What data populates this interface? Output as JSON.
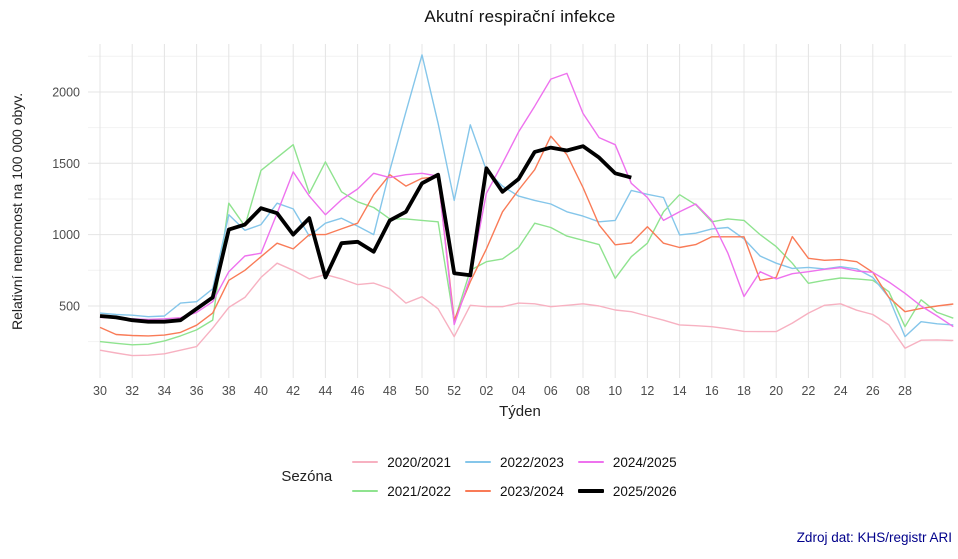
{
  "labels": {
    "title": "Akutní respirační infekce",
    "y_axis": "Relativní nemocnost na 100 000 obyv.",
    "x_axis": "Týden",
    "legend_title": "Sezóna",
    "source": "Zdroj dat: KHS/registr ARI"
  },
  "chart_data": {
    "type": "line",
    "title": "Akutní respirační infekce",
    "xlabel": "Týden",
    "ylabel": "Relativní nemocnost na 100 000 obyv.",
    "legend_title": "Sezóna",
    "legend_position": "bottom",
    "source": "Zdroj dat: KHS/registr ARI",
    "x_categories": [
      "30",
      "31",
      "32",
      "33",
      "34",
      "35",
      "36",
      "37",
      "38",
      "39",
      "40",
      "41",
      "42",
      "43",
      "44",
      "45",
      "46",
      "47",
      "48",
      "49",
      "50",
      "51",
      "52",
      "01",
      "02",
      "03",
      "04",
      "05",
      "06",
      "07",
      "08",
      "09",
      "10",
      "11",
      "12",
      "13",
      "14",
      "15",
      "16",
      "17",
      "18",
      "19",
      "20",
      "21",
      "22",
      "23",
      "24",
      "25",
      "26",
      "27",
      "28",
      "29",
      "30",
      "31"
    ],
    "x_axis": {
      "ticks": [
        {
          "index": 0,
          "label": "30"
        },
        {
          "index": 2,
          "label": "32"
        },
        {
          "index": 4,
          "label": "34"
        },
        {
          "index": 6,
          "label": "36"
        },
        {
          "index": 8,
          "label": "38"
        },
        {
          "index": 10,
          "label": "40"
        },
        {
          "index": 12,
          "label": "42"
        },
        {
          "index": 14,
          "label": "44"
        },
        {
          "index": 16,
          "label": "46"
        },
        {
          "index": 18,
          "label": "48"
        },
        {
          "index": 20,
          "label": "50"
        },
        {
          "index": 22,
          "label": "52"
        },
        {
          "index": 24,
          "label": "02"
        },
        {
          "index": 26,
          "label": "04"
        },
        {
          "index": 28,
          "label": "06"
        },
        {
          "index": 30,
          "label": "08"
        },
        {
          "index": 32,
          "label": "10"
        },
        {
          "index": 34,
          "label": "12"
        },
        {
          "index": 36,
          "label": "14"
        },
        {
          "index": 38,
          "label": "16"
        },
        {
          "index": 40,
          "label": "18"
        },
        {
          "index": 42,
          "label": "20"
        },
        {
          "index": 44,
          "label": "22"
        },
        {
          "index": 46,
          "label": "24"
        },
        {
          "index": 48,
          "label": "26"
        },
        {
          "index": 50,
          "label": "28"
        }
      ]
    },
    "y_axis": {
      "ticks": [
        {
          "value": 500,
          "label": "500"
        },
        {
          "value": 1000,
          "label": "1000"
        },
        {
          "value": 1500,
          "label": "1500"
        },
        {
          "value": 2000,
          "label": "2000"
        }
      ],
      "minor_gridlines": [
        250,
        750,
        1250,
        1750,
        2250
      ],
      "range": [
        0,
        2340
      ]
    },
    "grid": {
      "major_color": "#E4E4E4",
      "minor_color": "#F2F2F2"
    },
    "series": [
      {
        "name": "2020/2021",
        "color": "#F7B1C1",
        "line_width": 1.4,
        "values": [
          190,
          170,
          152,
          155,
          165,
          190,
          215,
          345,
          490,
          560,
          700,
          800,
          750,
          690,
          720,
          690,
          650,
          660,
          620,
          520,
          565,
          480,
          285,
          505,
          495,
          495,
          520,
          515,
          495,
          505,
          515,
          500,
          472,
          460,
          430,
          400,
          367,
          362,
          355,
          340,
          322,
          320,
          320,
          380,
          450,
          505,
          515,
          470,
          440,
          367,
          204,
          260,
          262,
          258
        ]
      },
      {
        "name": "2021/2022",
        "color": "#8FE38F",
        "line_width": 1.4,
        "values": [
          250,
          238,
          228,
          232,
          255,
          290,
          332,
          401,
          1220,
          1060,
          1450,
          1540,
          1630,
          1290,
          1510,
          1300,
          1230,
          1190,
          1110,
          1110,
          1100,
          1090,
          390,
          750,
          810,
          830,
          910,
          1080,
          1050,
          990,
          960,
          930,
          694,
          845,
          940,
          1160,
          1280,
          1210,
          1090,
          1110,
          1100,
          1000,
          916,
          800,
          659,
          680,
          696,
          690,
          680,
          600,
          355,
          543,
          455,
          414
        ]
      },
      {
        "name": "2022/2023",
        "color": "#85C6EA",
        "line_width": 1.4,
        "values": [
          450,
          440,
          435,
          425,
          430,
          520,
          530,
          620,
          1140,
          1030,
          1070,
          1220,
          1180,
          990,
          1080,
          1115,
          1060,
          1000,
          1450,
          1860,
          2260,
          1780,
          1240,
          1770,
          1450,
          1340,
          1270,
          1240,
          1215,
          1160,
          1130,
          1090,
          1100,
          1310,
          1283,
          1260,
          998,
          1010,
          1040,
          1050,
          970,
          850,
          800,
          763,
          770,
          760,
          775,
          760,
          700,
          560,
          285,
          390,
          375,
          367
        ]
      },
      {
        "name": "2023/2024",
        "color": "#F97B57",
        "line_width": 1.4,
        "values": [
          350,
          300,
          293,
          290,
          296,
          315,
          365,
          450,
          680,
          750,
          845,
          940,
          900,
          1000,
          1000,
          1040,
          1080,
          1280,
          1420,
          1340,
          1395,
          1405,
          400,
          670,
          900,
          1160,
          1313,
          1455,
          1690,
          1560,
          1330,
          1068,
          929,
          942,
          1055,
          940,
          910,
          930,
          985,
          985,
          985,
          680,
          700,
          986,
          834,
          820,
          825,
          810,
          736,
          560,
          460,
          483,
          500,
          514
        ]
      },
      {
        "name": "2024/2025",
        "color": "#EE72EE",
        "line_width": 1.4,
        "values": [
          420,
          415,
          410,
          405,
          410,
          418,
          455,
          530,
          740,
          850,
          870,
          1150,
          1440,
          1270,
          1140,
          1245,
          1320,
          1430,
          1400,
          1420,
          1430,
          1410,
          370,
          700,
          1290,
          1500,
          1720,
          1900,
          2090,
          2130,
          1850,
          1680,
          1630,
          1360,
          1260,
          1100,
          1160,
          1215,
          1100,
          870,
          566,
          740,
          690,
          726,
          740,
          757,
          768,
          745,
          736,
          668,
          589,
          500,
          430,
          355
        ]
      },
      {
        "name": "2025/2026",
        "color": "#000000",
        "line_width": 3.8,
        "values": [
          430,
          420,
          400,
          390,
          390,
          400,
          480,
          560,
          1035,
          1070,
          1185,
          1150,
          1000,
          1115,
          700,
          940,
          950,
          880,
          1100,
          1160,
          1360,
          1420,
          730,
          715,
          1465,
          1300,
          1390,
          1580,
          1610,
          1590,
          1620,
          1540,
          1430,
          1400
        ]
      }
    ]
  }
}
